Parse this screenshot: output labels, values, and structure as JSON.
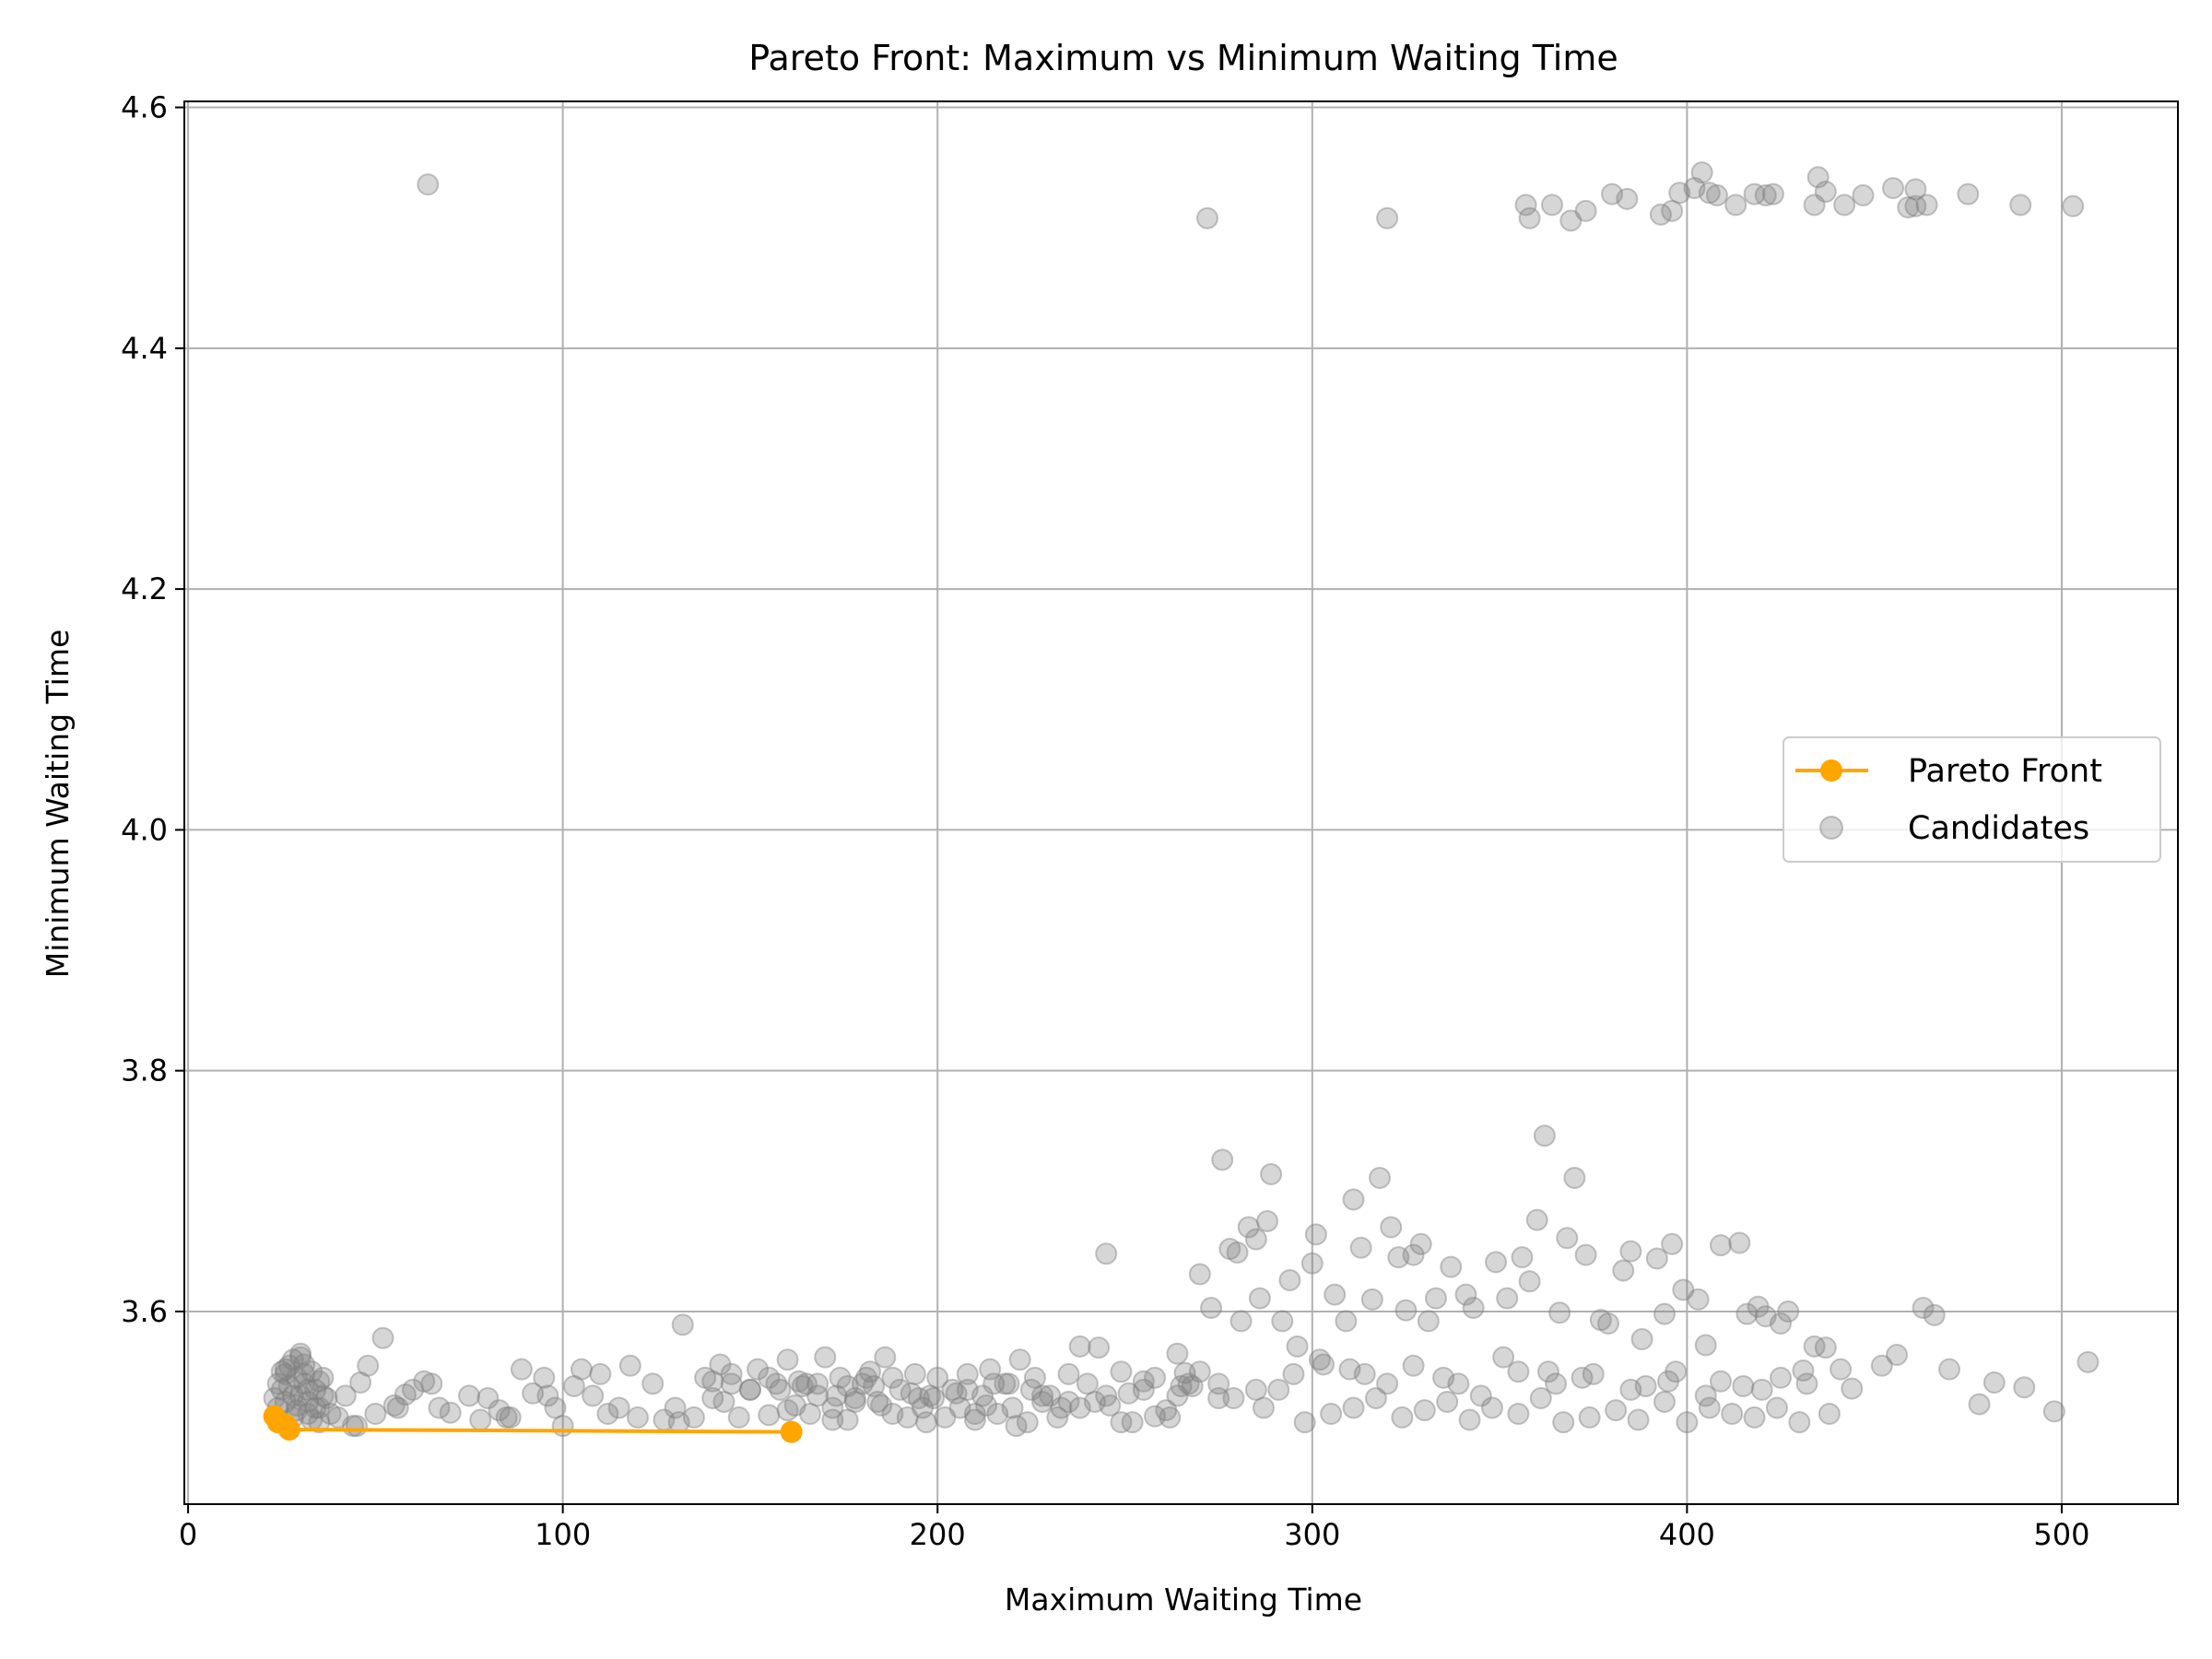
{
  "colors": {
    "pareto": "#ffa500",
    "candidates": "#808080",
    "grid": "#b0b0b0",
    "axis": "#000000",
    "legend_border": "#cccccc"
  },
  "chart_data": {
    "type": "scatter",
    "title": "Pareto Front: Maximum vs Minimum Waiting Time",
    "xlabel": "Maximum Waiting Time",
    "ylabel": "Minimum Waiting Time",
    "xlim": [
      -1,
      531
    ],
    "ylim": [
      3.44,
      4.605
    ],
    "xticks": [
      0,
      100,
      200,
      300,
      400,
      500
    ],
    "yticks": [
      3.6,
      3.8,
      4.0,
      4.2,
      4.4,
      4.6
    ],
    "xtick_labels": [
      "0",
      "100",
      "200",
      "300",
      "400",
      "500"
    ],
    "ytick_labels": [
      "3.6",
      "3.8",
      "4.0",
      "4.2",
      "4.4",
      "4.6"
    ],
    "grid": true,
    "legend_position": "center-right",
    "series": [
      {
        "name": "Pareto Front",
        "style": "line-marker",
        "x": [
          23,
          24,
          26,
          27,
          161
        ],
        "y": [
          3.513,
          3.508,
          3.506,
          3.502,
          3.5
        ]
      },
      {
        "name": "Candidates",
        "style": "scatter",
        "x": [
          64,
          272,
          320,
          357,
          358,
          364,
          369,
          373,
          380,
          384,
          393,
          396,
          398,
          402,
          404,
          406,
          408,
          413,
          418,
          421,
          423,
          434,
          435,
          437,
          442,
          447,
          455,
          459,
          461,
          461,
          464,
          475,
          489,
          503,
          276,
          278,
          280,
          281,
          283,
          285,
          286,
          288,
          289,
          292,
          294,
          296,
          300,
          301,
          303,
          306,
          309,
          311,
          313,
          316,
          318,
          321,
          323,
          325,
          327,
          329,
          331,
          333,
          337,
          341,
          343,
          349,
          352,
          356,
          358,
          360,
          362,
          366,
          368,
          370,
          373,
          377,
          379,
          383,
          385,
          388,
          392,
          394,
          396,
          399,
          403,
          405,
          409,
          414,
          416,
          419,
          421,
          425,
          427,
          431,
          434,
          437,
          441,
          444,
          452,
          456,
          463,
          466,
          470,
          478,
          482,
          490,
          498,
          507,
          245,
          238,
          258,
          264,
          266,
          270,
          273,
          275,
          24,
          25,
          26,
          27,
          28,
          29,
          30,
          31,
          32,
          33,
          34,
          35,
          36,
          37,
          38,
          24,
          26,
          28,
          30,
          32,
          34,
          36,
          25,
          27,
          29,
          31,
          33,
          35,
          23,
          26,
          29,
          32,
          35,
          30,
          31,
          28,
          40,
          42,
          44,
          46,
          48,
          50,
          52,
          55,
          58,
          60,
          63,
          65,
          67,
          70,
          75,
          78,
          80,
          83,
          86,
          89,
          92,
          95,
          98,
          100,
          103,
          105,
          108,
          110,
          115,
          118,
          120,
          124,
          127,
          130,
          132,
          135,
          138,
          140,
          142,
          145,
          147,
          150,
          152,
          155,
          157,
          160,
          162,
          164,
          166,
          168,
          170,
          172,
          174,
          176,
          178,
          180,
          182,
          184,
          186,
          188,
          190,
          192,
          194,
          196,
          198,
          200,
          202,
          204,
          206,
          208,
          210,
          212,
          214,
          216,
          218,
          220,
          222,
          224,
          226,
          228,
          230,
          232,
          235,
          238,
          240,
          243,
          246,
          249,
          252,
          255,
          258,
          261,
          264,
          267,
          270,
          45,
          56,
          85,
          96,
          112,
          131,
          143,
          160,
          172,
          185,
          197,
          210,
          221,
          233,
          249,
          262,
          287,
          298,
          305,
          311,
          317,
          324,
          330,
          336,
          342,
          348,
          355,
          361,
          367,
          374,
          381,
          387,
          394,
          400,
          406,
          412,
          418,
          424,
          430,
          438,
          150,
          155,
          165,
          168,
          178,
          183,
          188,
          195,
          205,
          215,
          225,
          235,
          245,
          255,
          265,
          275,
          285,
          295,
          310,
          320,
          335,
          345,
          355,
          365,
          375,
          385,
          395,
          405,
          415,
          425,
          140,
          145,
          158,
          163,
          173,
          176,
          181,
          193,
          199,
          208,
          213,
          219,
          228,
          242,
          251,
          268,
          279,
          291,
          302,
          314,
          327,
          339,
          351,
          363,
          372,
          389,
          397,
          409,
          420,
          432
        ],
        "y": [
          4.536,
          4.508,
          4.508,
          4.519,
          4.508,
          4.519,
          4.506,
          4.514,
          4.528,
          4.524,
          4.511,
          4.514,
          4.529,
          4.533,
          4.546,
          4.529,
          4.527,
          4.519,
          4.528,
          4.527,
          4.528,
          4.519,
          4.542,
          4.53,
          4.519,
          4.527,
          4.533,
          4.517,
          4.532,
          4.518,
          4.519,
          4.528,
          4.519,
          4.518,
          3.726,
          3.652,
          3.649,
          3.592,
          3.67,
          3.66,
          3.611,
          3.675,
          3.714,
          3.592,
          3.626,
          3.571,
          3.64,
          3.664,
          3.556,
          3.614,
          3.592,
          3.693,
          3.653,
          3.61,
          3.711,
          3.67,
          3.645,
          3.601,
          3.647,
          3.656,
          3.592,
          3.611,
          3.637,
          3.614,
          3.603,
          3.641,
          3.611,
          3.645,
          3.625,
          3.676,
          3.746,
          3.599,
          3.661,
          3.711,
          3.647,
          3.593,
          3.59,
          3.634,
          3.65,
          3.577,
          3.644,
          3.598,
          3.656,
          3.618,
          3.61,
          3.572,
          3.655,
          3.657,
          3.598,
          3.604,
          3.596,
          3.59,
          3.6,
          3.551,
          3.571,
          3.57,
          3.552,
          3.536,
          3.555,
          3.564,
          3.603,
          3.597,
          3.552,
          3.523,
          3.541,
          3.537,
          3.517,
          3.558,
          3.648,
          3.571,
          3.513,
          3.565,
          3.549,
          3.631,
          3.603,
          3.54,
          3.52,
          3.535,
          3.548,
          3.555,
          3.53,
          3.545,
          3.562,
          3.54,
          3.525,
          3.55,
          3.535,
          3.52,
          3.545,
          3.528,
          3.515,
          3.54,
          3.525,
          3.512,
          3.53,
          3.515,
          3.52,
          3.53,
          3.55,
          3.538,
          3.522,
          3.548,
          3.51,
          3.542,
          3.528,
          3.552,
          3.518,
          3.535,
          3.508,
          3.565,
          3.556,
          3.56,
          3.512,
          3.53,
          3.505,
          3.541,
          3.555,
          3.515,
          3.578,
          3.522,
          3.531,
          3.535,
          3.542,
          3.54,
          3.52,
          3.516,
          3.53,
          3.51,
          3.528,
          3.518,
          3.512,
          3.552,
          3.532,
          3.545,
          3.52,
          3.505,
          3.538,
          3.552,
          3.53,
          3.548,
          3.52,
          3.555,
          3.512,
          3.54,
          3.51,
          3.52,
          3.589,
          3.512,
          3.545,
          3.528,
          3.556,
          3.54,
          3.512,
          3.535,
          3.552,
          3.514,
          3.54,
          3.56,
          3.522,
          3.538,
          3.515,
          3.54,
          3.562,
          3.52,
          3.545,
          3.51,
          3.528,
          3.54,
          3.55,
          3.525,
          3.562,
          3.515,
          3.535,
          3.512,
          3.548,
          3.52,
          3.53,
          3.545,
          3.512,
          3.535,
          3.52,
          3.548,
          3.51,
          3.53,
          3.552,
          3.515,
          3.54,
          3.52,
          3.56,
          3.508,
          3.545,
          3.525,
          3.53,
          3.512,
          3.548,
          3.52,
          3.54,
          3.57,
          3.522,
          3.55,
          3.508,
          3.535,
          3.545,
          3.518,
          3.53,
          3.54,
          3.55,
          3.505,
          3.52,
          3.512,
          3.53,
          3.515,
          3.508,
          3.525,
          3.518,
          3.51,
          3.522,
          3.508,
          3.515,
          3.505,
          3.52,
          3.508,
          3.512,
          3.52,
          3.508,
          3.515,
          3.52,
          3.528,
          3.512,
          3.518,
          3.525,
          3.51,
          3.52,
          3.515,
          3.528,
          3.508,
          3.512,
          3.518,
          3.51,
          3.525,
          3.508,
          3.52,
          3.515,
          3.512,
          3.52,
          3.508,
          3.515,
          3.535,
          3.545,
          3.54,
          3.53,
          3.525,
          3.538,
          3.545,
          3.528,
          3.532,
          3.54,
          3.535,
          3.525,
          3.53,
          3.542,
          3.538,
          3.528,
          3.535,
          3.548,
          3.552,
          3.54,
          3.545,
          3.53,
          3.55,
          3.54,
          3.548,
          3.535,
          3.542,
          3.53,
          3.538,
          3.545,
          3.542,
          3.548,
          3.535,
          3.542,
          3.53,
          3.538,
          3.545,
          3.532,
          3.528,
          3.535,
          3.522,
          3.54,
          3.53,
          3.525,
          3.532,
          3.538,
          3.528,
          3.535,
          3.56,
          3.548,
          3.555,
          3.54,
          3.562,
          3.55,
          3.545,
          3.538,
          3.55,
          3.542,
          3.535,
          3.54
        ]
      }
    ]
  }
}
